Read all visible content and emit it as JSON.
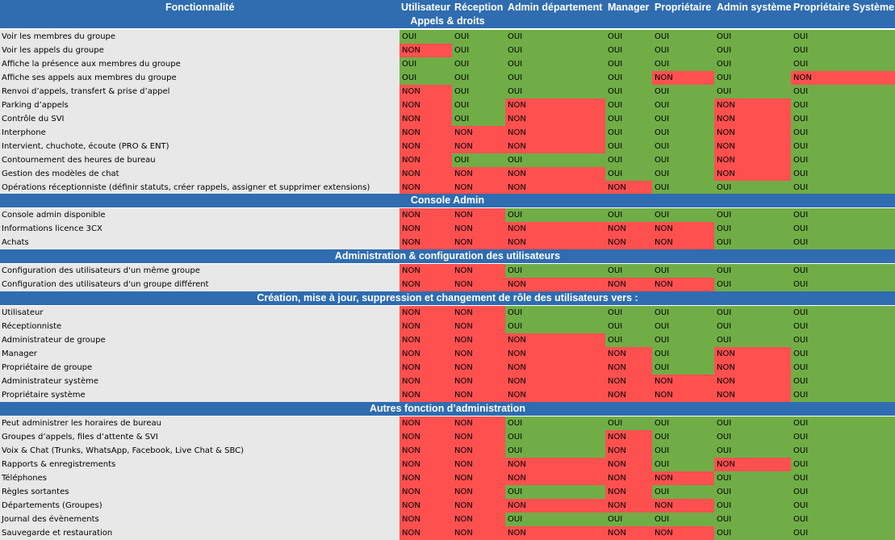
{
  "header": {
    "feature": "Fonctionnalité",
    "roles": [
      "Utilisateur",
      "Réception",
      "Admin département",
      "Manager",
      "Propriétaire",
      "Admin système",
      "Propriétaire Système"
    ]
  },
  "sections": [
    {
      "title": "Appels & droits",
      "rows": [
        {
          "feature": "Voir les membres du groupe",
          "values": [
            "OUI",
            "OUI",
            "OUI",
            "OUI",
            "OUI",
            "OUI",
            "OUI"
          ]
        },
        {
          "feature": "Voir les appels du groupe",
          "values": [
            "NON",
            "OUI",
            "OUI",
            "OUI",
            "OUI",
            "OUI",
            "OUI"
          ]
        },
        {
          "feature": "Affiche la présence aux membres du groupe",
          "values": [
            "OUI",
            "OUI",
            "OUI",
            "OUI",
            "OUI",
            "OUI",
            "OUI"
          ]
        },
        {
          "feature": "Affiche ses appels aux membres du groupe",
          "values": [
            "OUI",
            "OUI",
            "OUI",
            "OUI",
            "NON",
            "OUI",
            "NON"
          ]
        },
        {
          "feature": "Renvoi d’appels, transfert & prise d’appel",
          "values": [
            "NON",
            "OUI",
            "OUI",
            "OUI",
            "OUI",
            "OUI",
            "OUI"
          ]
        },
        {
          "feature": "Parking d’appels",
          "values": [
            "NON",
            "OUI",
            "NON",
            "OUI",
            "OUI",
            "NON",
            "OUI"
          ]
        },
        {
          "feature": "Contrôle du SVI",
          "values": [
            "NON",
            "OUI",
            "NON",
            "OUI",
            "OUI",
            "NON",
            "OUI"
          ]
        },
        {
          "feature": "Interphone",
          "values": [
            "NON",
            "NON",
            "NON",
            "OUI",
            "OUI",
            "NON",
            "OUI"
          ]
        },
        {
          "feature": "Intervient, chuchote, écoute (PRO & ENT)",
          "values": [
            "NON",
            "NON",
            "NON",
            "OUI",
            "OUI",
            "NON",
            "OUI"
          ]
        },
        {
          "feature": "Contournement des heures de bureau",
          "values": [
            "NON",
            "OUI",
            "OUI",
            "OUI",
            "OUI",
            "NON",
            "OUI"
          ]
        },
        {
          "feature": "Gestion des modèles de chat",
          "values": [
            "NON",
            "NON",
            "NON",
            "OUI",
            "OUI",
            "NON",
            "OUI"
          ]
        },
        {
          "feature": "Opérations réceptionniste (définir statuts, créer rappels, assigner et supprimer extensions)",
          "values": [
            "NON",
            "NON",
            "NON",
            "NON",
            "OUI",
            "OUI",
            "OUI"
          ]
        }
      ]
    },
    {
      "title": "Console Admin",
      "rows": [
        {
          "feature": "Console admin disponible",
          "values": [
            "NON",
            "NON",
            "OUI",
            "OUI",
            "OUI",
            "OUI",
            "OUI"
          ]
        },
        {
          "feature": "Informations licence 3CX",
          "values": [
            "NON",
            "NON",
            "NON",
            "NON",
            "NON",
            "OUI",
            "OUI"
          ]
        },
        {
          "feature": "Achats",
          "values": [
            "NON",
            "NON",
            "NON",
            "NON",
            "NON",
            "OUI",
            "OUI"
          ]
        }
      ]
    },
    {
      "title": "Administration & configuration des utilisateurs",
      "rows": [
        {
          "feature": "Configuration des utilisateurs d'un même groupe",
          "values": [
            "NON",
            "NON",
            "OUI",
            "OUI",
            "OUI",
            "OUI",
            "OUI"
          ]
        },
        {
          "feature": "Configuration des utilisateurs d'un groupe différent",
          "values": [
            "NON",
            "NON",
            "NON",
            "NON",
            "NON",
            "OUI",
            "OUI"
          ]
        }
      ]
    },
    {
      "title": "Création, mise à jour, suppression et changement de rôle des utilisateurs vers :",
      "rows": [
        {
          "feature": "Utilisateur",
          "values": [
            "NON",
            "NON",
            "OUI",
            "OUI",
            "OUI",
            "OUI",
            "OUI"
          ]
        },
        {
          "feature": "Réceptionniste",
          "values": [
            "NON",
            "NON",
            "OUI",
            "OUI",
            "OUI",
            "OUI",
            "OUI"
          ]
        },
        {
          "feature": "Administrateur de groupe",
          "values": [
            "NON",
            "NON",
            "NON",
            "OUI",
            "OUI",
            "OUI",
            "OUI"
          ]
        },
        {
          "feature": "Manager",
          "values": [
            "NON",
            "NON",
            "NON",
            "NON",
            "OUI",
            "NON",
            "OUI"
          ]
        },
        {
          "feature": "Propriétaire de groupe",
          "values": [
            "NON",
            "NON",
            "NON",
            "NON",
            "OUI",
            "NON",
            "OUI"
          ]
        },
        {
          "feature": "Administrateur système",
          "values": [
            "NON",
            "NON",
            "NON",
            "NON",
            "NON",
            "NON",
            "OUI"
          ]
        },
        {
          "feature": "Propriétaire système",
          "values": [
            "NON",
            "NON",
            "NON",
            "NON",
            "NON",
            "NON",
            "OUI"
          ]
        }
      ]
    },
    {
      "title": "Autres fonction d’administration",
      "rows": [
        {
          "feature": "Peut administrer les horaires de bureau",
          "values": [
            "NON",
            "NON",
            "OUI",
            "OUI",
            "OUI",
            "OUI",
            "OUI"
          ]
        },
        {
          "feature": "Groupes d’appels, files d’attente & SVI",
          "values": [
            "NON",
            "NON",
            "OUI",
            "NON",
            "OUI",
            "OUI",
            "OUI"
          ]
        },
        {
          "feature": "Voix & Chat (Trunks, WhatsApp, Facebook, Live Chat & SBC)",
          "values": [
            "NON",
            "NON",
            "OUI",
            "NON",
            "OUI",
            "OUI",
            "OUI"
          ]
        },
        {
          "feature": "Rapports & enregistrements",
          "values": [
            "NON",
            "NON",
            "NON",
            "NON",
            "OUI",
            "NON",
            "OUI"
          ]
        },
        {
          "feature": "Téléphones",
          "values": [
            "NON",
            "NON",
            "NON",
            "NON",
            "NON",
            "OUI",
            "OUI"
          ]
        },
        {
          "feature": "Règles sortantes",
          "values": [
            "NON",
            "NON",
            "OUI",
            "NON",
            "OUI",
            "OUI",
            "OUI"
          ]
        },
        {
          "feature": "Départements (Groupes)",
          "values": [
            "NON",
            "NON",
            "NON",
            "NON",
            "NON",
            "OUI",
            "OUI"
          ]
        },
        {
          "feature": "Journal des évènements",
          "values": [
            "NON",
            "NON",
            "OUI",
            "OUI",
            "OUI",
            "OUI",
            "OUI"
          ]
        },
        {
          "feature": "Sauvegarde et restauration",
          "values": [
            "NON",
            "NON",
            "NON",
            "NON",
            "NON",
            "OUI",
            "OUI"
          ]
        }
      ]
    }
  ],
  "colors": {
    "header_bg": "#2f6cb0",
    "yes": "#70ad47",
    "no": "#ff5050",
    "feature_bg": "#e8e8e8"
  }
}
